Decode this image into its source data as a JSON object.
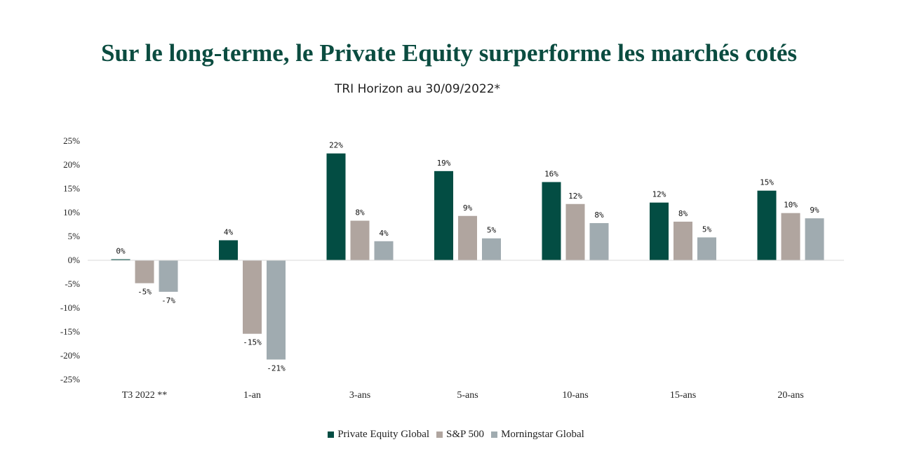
{
  "chart_data": {
    "type": "bar",
    "title": "Sur le long-terme, le Private Equity surperforme les marchés cotés",
    "subtitle": "TRI Horizon au 30/09/2022*",
    "categories": [
      "T3 2022 **",
      "1-an",
      "3-ans",
      "5-ans",
      "10-ans",
      "15-ans",
      "20-ans"
    ],
    "ylim": [
      -25,
      25
    ],
    "yticks": [
      25,
      20,
      15,
      10,
      5,
      0,
      -5,
      -10,
      -15,
      -20,
      -25
    ],
    "ytick_labels": [
      "25%",
      "20%",
      "15%",
      "10%",
      "5%",
      "0%",
      "-5%",
      "-10%",
      "-15%",
      "-20%",
      "-25%"
    ],
    "grid": false,
    "legend_position": "bottom",
    "series": [
      {
        "name": "Private Equity Global",
        "color": "#034d43",
        "values": [
          0.2,
          4.2,
          22.4,
          18.7,
          16.4,
          12.1,
          14.6
        ],
        "labels": [
          "0%",
          "4%",
          "22%",
          "19%",
          "16%",
          "12%",
          "15%"
        ]
      },
      {
        "name": "S&P 500",
        "color": "#b0a59f",
        "values": [
          -4.8,
          -15.4,
          8.3,
          9.3,
          11.8,
          8.1,
          9.9
        ],
        "labels": [
          "-5%",
          "-15%",
          "8%",
          "9%",
          "12%",
          "8%",
          "10%"
        ]
      },
      {
        "name": "Morningstar Global",
        "color": "#a0abb0",
        "values": [
          -6.6,
          -20.8,
          4.0,
          4.6,
          7.8,
          4.8,
          8.8
        ],
        "labels": [
          "-7%",
          "-21%",
          "4%",
          "5%",
          "8%",
          "5%",
          "9%"
        ]
      }
    ]
  }
}
